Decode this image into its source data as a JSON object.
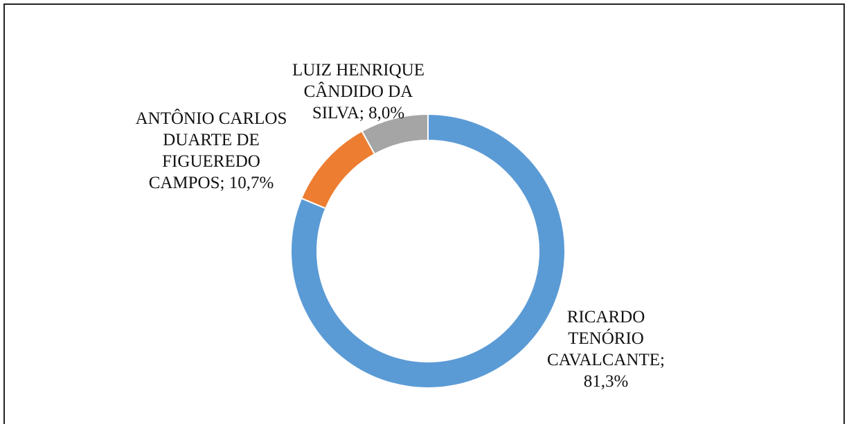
{
  "chart_data": {
    "type": "donut",
    "categories": [
      "RICARDO TENÓRIO CAVALCANTE",
      "ANTÔNIO CARLOS DUARTE DE FIGUEREDO CAMPOS",
      "LUIZ HENRIQUE CÂNDIDO DA SILVA"
    ],
    "values": [
      81.3,
      10.7,
      8.0
    ],
    "value_labels": [
      "81,3%",
      "10,7%",
      "8,0%"
    ],
    "label_separator": "; ",
    "colors": [
      "#5b9bd5",
      "#ed7d31",
      "#a5a5a5"
    ]
  }
}
